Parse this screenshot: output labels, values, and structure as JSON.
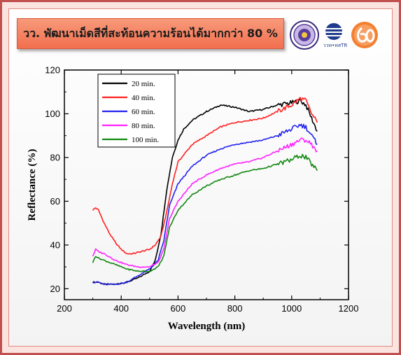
{
  "header": {
    "title": "วว. พัฒนาเม็ดสีที่สะท้อนความร้อนได้มากกว่า 80 %",
    "logo_2_text": "ววท•ทสTR"
  },
  "colors": {
    "frame": "#c0504d",
    "title_bg": "#f47f5f",
    "series": [
      "#000000",
      "#ff2020",
      "#2222ee",
      "#ff22ff",
      "#118811"
    ]
  },
  "chart_data": {
    "type": "line",
    "xlabel": "Wavelength (nm)",
    "ylabel": "Reflectance (%)",
    "xlim": [
      200,
      1200
    ],
    "ylim": [
      15,
      120
    ],
    "xticks": [
      200,
      400,
      600,
      800,
      1000,
      1200
    ],
    "yticks": [
      20,
      40,
      60,
      80,
      100,
      120
    ],
    "legend_position": "top-left",
    "grid": false,
    "series": [
      {
        "name": "20 min.",
        "x": [
          300,
          320,
          340,
          380,
          420,
          460,
          500,
          520,
          540,
          560,
          580,
          600,
          620,
          650,
          700,
          750,
          800,
          850,
          900,
          950,
          1000,
          1030,
          1050,
          1070,
          1090
        ],
        "y": [
          23,
          23,
          22,
          22,
          23,
          25,
          28,
          33,
          45,
          65,
          80,
          88,
          93,
          97,
          101,
          104,
          103,
          101,
          102,
          104,
          105,
          106,
          104,
          98,
          92
        ]
      },
      {
        "name": "40 min.",
        "x": [
          300,
          310,
          320,
          340,
          360,
          380,
          400,
          420,
          440,
          470,
          500,
          520,
          540,
          560,
          580,
          600,
          650,
          700,
          750,
          800,
          850,
          900,
          950,
          1000,
          1030,
          1050,
          1070,
          1090
        ],
        "y": [
          56,
          57,
          56,
          50,
          45,
          41,
          38,
          36,
          36,
          37,
          38,
          40,
          44,
          55,
          68,
          78,
          86,
          90,
          94,
          96,
          97,
          98,
          101,
          104,
          107,
          106,
          100,
          96
        ]
      },
      {
        "name": "60 min.",
        "x": [
          300,
          320,
          340,
          380,
          420,
          460,
          500,
          530,
          550,
          570,
          600,
          650,
          700,
          750,
          800,
          850,
          900,
          950,
          1000,
          1030,
          1050,
          1070,
          1090
        ],
        "y": [
          23,
          23,
          22,
          22,
          23,
          26,
          29,
          33,
          42,
          58,
          68,
          76,
          81,
          84,
          86,
          87,
          88,
          90,
          93,
          95,
          94,
          90,
          86
        ]
      },
      {
        "name": "80 min.",
        "x": [
          300,
          310,
          320,
          340,
          380,
          420,
          460,
          500,
          530,
          550,
          570,
          600,
          650,
          700,
          750,
          800,
          850,
          900,
          950,
          1000,
          1030,
          1050,
          1070,
          1090
        ],
        "y": [
          35,
          38,
          37,
          36,
          33,
          31,
          30,
          30,
          32,
          38,
          52,
          60,
          68,
          72,
          75,
          77,
          78,
          80,
          83,
          86,
          88,
          88,
          86,
          83
        ]
      },
      {
        "name": "100 min.",
        "x": [
          300,
          310,
          320,
          340,
          380,
          420,
          460,
          500,
          530,
          550,
          570,
          600,
          650,
          700,
          750,
          800,
          850,
          900,
          950,
          1000,
          1030,
          1050,
          1070,
          1090
        ],
        "y": [
          32,
          35,
          34,
          33,
          31,
          29,
          28,
          28,
          30,
          35,
          48,
          56,
          63,
          67,
          70,
          72,
          74,
          75,
          77,
          79,
          81,
          80,
          77,
          74
        ]
      }
    ]
  }
}
